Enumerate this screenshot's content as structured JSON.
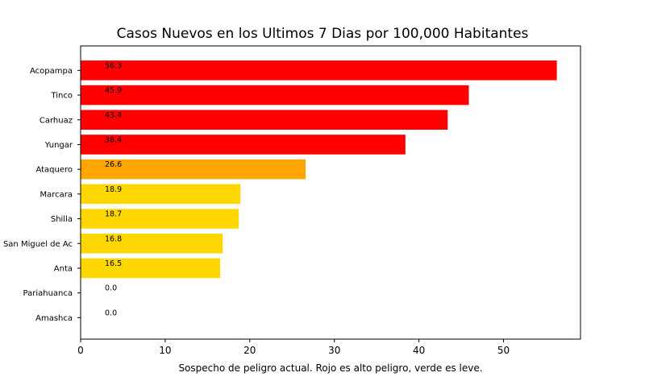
{
  "chart_data": {
    "type": "bar",
    "orientation": "horizontal",
    "title": "Casos Nuevos en los Ultimos 7 Dias por 100,000 Habitantes",
    "xlabel": "Sospecho de peligro actual. Rojo es alto peligro, verde es leve.",
    "ylabel": "",
    "categories": [
      "Acopampa",
      "Tinco",
      "Carhuaz",
      "Yungar",
      "Ataquero",
      "Marcara",
      "Shilla",
      "San Miguel de Ac",
      "Anta",
      "Pariahuanca",
      "Amashca"
    ],
    "values": [
      56.3,
      45.9,
      43.4,
      38.4,
      26.6,
      18.9,
      18.7,
      16.8,
      16.5,
      0.0,
      0.0
    ],
    "value_labels": [
      "56.3",
      "45.9",
      "43.4",
      "38.4",
      "26.6",
      "18.9",
      "18.7",
      "16.8",
      "16.5",
      "0.0",
      "0.0"
    ],
    "colors": [
      "#ff0000",
      "#ff0000",
      "#ff0000",
      "#ff0000",
      "#ffa500",
      "#ffd700",
      "#ffd700",
      "#ffd700",
      "#ffd700",
      "#ffd700",
      "#ffd700"
    ],
    "xlim": [
      0,
      59.1
    ],
    "xticks": [
      0,
      10,
      20,
      30,
      40,
      50
    ],
    "xtick_labels": [
      "0",
      "10",
      "20",
      "30",
      "40",
      "50"
    ],
    "grid": false,
    "legend": "none"
  }
}
